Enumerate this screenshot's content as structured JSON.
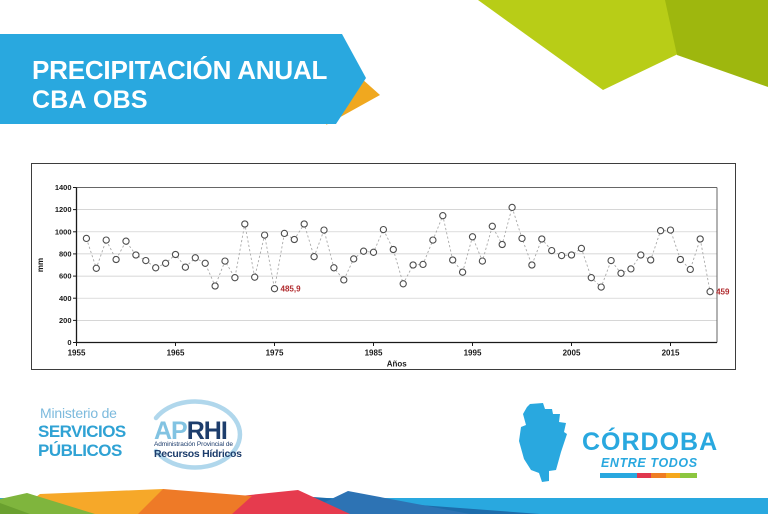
{
  "header": {
    "title_line1": "PRECIPITACIÓN ANUAL",
    "title_line2": "CBA OBS"
  },
  "chart_data": {
    "type": "scatter",
    "title": "",
    "xlabel": "Años",
    "ylabel": "mm",
    "ylim": [
      0,
      1400
    ],
    "yticks": [
      0,
      200,
      400,
      600,
      800,
      1000,
      1200,
      1400
    ],
    "xticks": [
      1955,
      1965,
      1975,
      1985,
      1995,
      2005,
      2015
    ],
    "grid": true,
    "marker": "open-circle",
    "line_style": "dashed",
    "x": [
      1956,
      1957,
      1958,
      1959,
      1960,
      1961,
      1962,
      1963,
      1964,
      1965,
      1966,
      1967,
      1968,
      1969,
      1970,
      1971,
      1972,
      1973,
      1974,
      1975,
      1976,
      1977,
      1978,
      1979,
      1980,
      1981,
      1982,
      1983,
      1984,
      1985,
      1986,
      1987,
      1988,
      1989,
      1990,
      1991,
      1992,
      1993,
      1994,
      1995,
      1996,
      1997,
      1998,
      1999,
      2000,
      2001,
      2002,
      2003,
      2004,
      2005,
      2006,
      2007,
      2008,
      2009,
      2010,
      2011,
      2012,
      2013,
      2014,
      2015,
      2016,
      2017,
      2018,
      2019
    ],
    "values": [
      940,
      670,
      925,
      750,
      915,
      790,
      740,
      675,
      715,
      795,
      680,
      765,
      715,
      510,
      735,
      585,
      1070,
      590,
      970,
      485.9,
      985,
      930,
      1070,
      775,
      1015,
      675,
      565,
      755,
      825,
      815,
      1020,
      840,
      530,
      700,
      705,
      925,
      1145,
      745,
      635,
      955,
      735,
      1050,
      885,
      1220,
      940,
      700,
      935,
      830,
      785,
      790,
      850,
      585,
      500,
      740,
      625,
      665,
      790,
      745,
      1010,
      1015,
      750,
      660,
      935,
      459
    ],
    "annotations": [
      {
        "year": 1975,
        "label": "485,9"
      },
      {
        "year": 2019,
        "label": "459"
      }
    ]
  },
  "footer": {
    "ministerio": {
      "line1": "Ministerio de",
      "line2": "SERVICIOS",
      "line3": "PÚBLICOS"
    },
    "aprhi": {
      "acronym_light": "AP",
      "acronym_dark": "RHI",
      "sub1": "Administración Provincial de",
      "sub2": "Recursos Hídricos"
    },
    "cordoba": {
      "name": "CÓRDOBA",
      "tagline": "ENTRE TODOS"
    }
  },
  "colors": {
    "banner_cyan": "#29a8df",
    "banner_orange": "#f0a81f",
    "deco_green_light": "#b8cd17",
    "deco_green_dark": "#9eb70e",
    "annotation_red": "#b0292c",
    "navy": "#1d3d6c",
    "footer_cyan": "#2fa2d4"
  }
}
